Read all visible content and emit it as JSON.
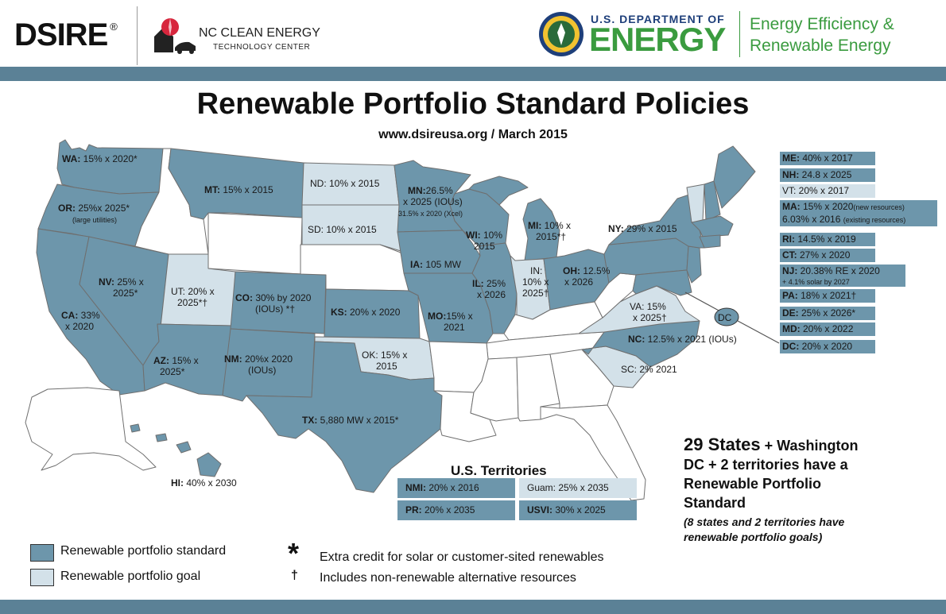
{
  "header": {
    "dsire_logo": "DSIRE",
    "dsire_mark": "®",
    "nc_center_line1": "NC CLEAN ENERGY",
    "nc_center_line2": "TECHNOLOGY CENTER",
    "doe_small": "U.S. DEPARTMENT OF",
    "doe_big": "ENERGY",
    "eere_line1": "Energy Efficiency &",
    "eere_line2": "Renewable Energy"
  },
  "title": "Renewable Portfolio Standard Policies",
  "subtitle": "www.dsireusa.org / March 2015",
  "colors": {
    "standard": "#6d96ab",
    "goal": "#d3e1e9",
    "none": "#ffffff",
    "band": "#5b8196",
    "doe_green": "#3a9b3f"
  },
  "states": {
    "WA": {
      "code": "WA:",
      "text": " 15% x 2020*"
    },
    "OR": {
      "code": "OR:",
      "text": " 25%x 2025*",
      "note": "(large utilities)"
    },
    "CA": {
      "code": "CA:",
      "text": " 33%",
      "text2": "x 2020"
    },
    "NV": {
      "code": "NV:",
      "text": " 25% x",
      "text2": "2025*"
    },
    "UT": {
      "text": "UT: 20% x",
      "text2": "2025*†"
    },
    "AZ": {
      "code": "AZ:",
      "text": " 15% x",
      "text2": "2025*"
    },
    "MT": {
      "code": "MT:",
      "text": " 15% x 2015"
    },
    "ND": {
      "text": "ND: 10% x 2015"
    },
    "SD": {
      "text": "SD: 10% x 2015"
    },
    "CO": {
      "code": "CO:",
      "text": " 30% by 2020",
      "text2": "(IOUs) *†"
    },
    "NM": {
      "code": "NM:",
      "text": " 20%x 2020",
      "text2": "(IOUs)"
    },
    "KS": {
      "code": "KS:",
      "text": " 20% x 2020"
    },
    "OK": {
      "text": "OK: 15% x",
      "text2": "2015"
    },
    "TX": {
      "code": "TX:",
      "text": " 5,880 MW x 2015*"
    },
    "MN": {
      "code": "MN:",
      "text": "26.5%",
      "text2": "x 2025 (IOUs)",
      "note": "31.5% x 2020 (Xcel)"
    },
    "IA": {
      "code": "IA:",
      "text": " 105 MW"
    },
    "MO": {
      "code": "MO:",
      "text": "15% x",
      "text2": "2021"
    },
    "WI": {
      "code": "WI:",
      "text": " 10%",
      "text2": "2015"
    },
    "IL": {
      "code": "IL:",
      "text": " 25%",
      "text2": "x 2026"
    },
    "MI": {
      "code": "MI:",
      "text": " 10% x",
      "text2": "2015*†"
    },
    "IN": {
      "text": "IN:",
      "text2": "10% x",
      "text3": "2025†"
    },
    "OH": {
      "code": "OH:",
      "text": " 12.5%",
      "text2": "x 2026"
    },
    "NY": {
      "code": "NY:",
      "text": " 29% x 2015"
    },
    "VA": {
      "text": "VA: 15%",
      "text2": "x 2025†"
    },
    "NC": {
      "code": "NC:",
      "text": " 12.5% x 2021 (IOUs)"
    },
    "SC": {
      "text": "SC: 2% 2021"
    },
    "HI": {
      "code": "HI:",
      "text": " 40% x 2030"
    },
    "DC_marker": "DC"
  },
  "northeast_list": [
    {
      "code": "ME:",
      "text": " 40% x 2017",
      "kind": "standard"
    },
    {
      "code": "NH:",
      "text": " 24.8 x 2025",
      "kind": "standard"
    },
    {
      "code": "",
      "text": "VT: 20% x 2017",
      "kind": "goal"
    },
    {
      "code": "MA:",
      "text": " 15% x 2020",
      "small": "(new resources)",
      "kind": "standard"
    },
    {
      "code": "",
      "text": "6.03% x 2016 ",
      "small": "(existing resources)",
      "kind": "standard"
    },
    {
      "code": "RI:",
      "text": " 14.5% x 2019",
      "kind": "standard"
    },
    {
      "code": "CT:",
      "text": " 27% x 2020",
      "kind": "standard"
    },
    {
      "code": "NJ:",
      "text": " 20.38% RE x 2020",
      "kind": "standard"
    },
    {
      "code": "",
      "text": "",
      "small": "+ 4.1% solar by 2027",
      "kind": "standard"
    },
    {
      "code": "PA:",
      "text": " 18% x 2021†",
      "kind": "standard"
    },
    {
      "code": "DE:",
      "text": " 25% x 2026*",
      "kind": "standard"
    },
    {
      "code": "MD:",
      "text": " 20% x 2022",
      "kind": "standard"
    },
    {
      "code": "DC:",
      "text": " 20% x 2020",
      "kind": "standard"
    }
  ],
  "territories": {
    "title": "U.S. Territories",
    "items": [
      {
        "code": "NMI:",
        "text": " 20% x 2016",
        "kind": "standard"
      },
      {
        "code": "",
        "text": "Guam: 25% x 2035",
        "kind": "goal"
      },
      {
        "code": "PR:",
        "text": " 20% x 2035",
        "kind": "standard"
      },
      {
        "code": "USVI:",
        "text": " 30% x 2025",
        "kind": "standard"
      }
    ]
  },
  "callout": {
    "line1_big": "29 States",
    "line1_rest": " + Washington",
    "line2": "DC + 2 territories have a",
    "line3": "Renewable Portfolio",
    "line4": "Standard",
    "note1": "(8 states and 2 territories have",
    "note2": "renewable portfolio goals)"
  },
  "legend": {
    "standard_label": "Renewable portfolio standard",
    "goal_label": "Renewable portfolio goal",
    "asterisk_symbol": "*",
    "asterisk_label": "Extra credit for solar or customer-sited renewables",
    "dagger_symbol": "†",
    "dagger_label": "Includes non-renewable alternative resources"
  }
}
